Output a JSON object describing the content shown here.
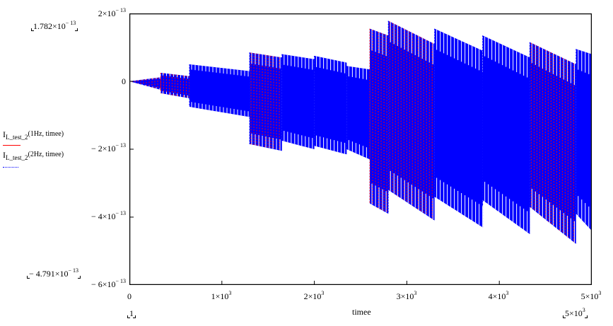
{
  "chart_data": {
    "type": "line",
    "title": "",
    "xlabel": "timee",
    "ylabel": "",
    "xlim": [
      0,
      5000
    ],
    "ylim": [
      -6e-13,
      2e-13
    ],
    "grid": false,
    "legend_position": "left",
    "x_ticks": [
      {
        "value": 0,
        "mant": "0",
        "exp": ""
      },
      {
        "value": 1000,
        "mant": "1×10",
        "exp": "3"
      },
      {
        "value": 2000,
        "mant": "2×10",
        "exp": "3"
      },
      {
        "value": 3000,
        "mant": "3×10",
        "exp": "3"
      },
      {
        "value": 4000,
        "mant": "4×10",
        "exp": "3"
      },
      {
        "value": 5000,
        "mant": "5×10",
        "exp": "3"
      }
    ],
    "y_ticks": [
      {
        "value": 2e-13,
        "mant": "2×10",
        "exp": "− 13"
      },
      {
        "value": 0,
        "mant": "0",
        "exp": ""
      },
      {
        "value": -2e-13,
        "mant": "− 2×10",
        "exp": "− 13"
      },
      {
        "value": -4e-13,
        "mant": "− 4×10",
        "exp": "− 13"
      },
      {
        "value": -6e-13,
        "mant": "− 6×10",
        "exp": "− 13"
      }
    ],
    "series": [
      {
        "name": "I_L_test_2(1Hz, timee)",
        "color": "#ff0000",
        "style": "solid"
      },
      {
        "name": "I_L_test_2(2Hz, timee)",
        "color": "#0000ff",
        "style": "dotted"
      }
    ],
    "envelope_segments": [
      {
        "t_start": 0,
        "t_end": 340,
        "top_start": 0.0,
        "top_end": 1.2e-14,
        "bot_start": 0.0,
        "bot_end": -2.5e-14
      },
      {
        "t_start": 340,
        "t_end": 650,
        "top_start": 2.5e-14,
        "top_end": 1.5e-14,
        "bot_start": -3.5e-14,
        "bot_end": -5e-14
      },
      {
        "t_start": 650,
        "t_end": 1300,
        "top_start": 5e-14,
        "top_end": 3e-14,
        "bot_start": -7.5e-14,
        "bot_end": -1.05e-13
      },
      {
        "t_start": 1300,
        "t_end": 1650,
        "top_start": 8.5e-14,
        "top_end": 7e-14,
        "bot_start": -1.85e-13,
        "bot_end": -2.05e-13
      },
      {
        "t_start": 1650,
        "t_end": 2000,
        "top_start": 8e-14,
        "top_end": 6.5e-14,
        "bot_start": -1.75e-13,
        "bot_end": -2e-13
      },
      {
        "t_start": 2000,
        "t_end": 2350,
        "top_start": 7.5e-14,
        "top_end": 5.5e-14,
        "bot_start": -1.9e-13,
        "bot_end": -2.15e-13
      },
      {
        "t_start": 2350,
        "t_end": 2600,
        "top_start": 4.5e-14,
        "top_end": 3.5e-14,
        "bot_start": -2e-13,
        "bot_end": -2.3e-13
      },
      {
        "t_start": 2600,
        "t_end": 2800,
        "top_start": 1.55e-13,
        "top_end": 1.35e-13,
        "bot_start": -3.6e-13,
        "bot_end": -3.9e-13
      },
      {
        "t_start": 2800,
        "t_end": 3300,
        "top_start": 1.78e-13,
        "top_end": 1.1e-13,
        "bot_start": -3.2e-13,
        "bot_end": -4.1e-13
      },
      {
        "t_start": 3300,
        "t_end": 3820,
        "top_start": 1.55e-13,
        "top_end": 9e-14,
        "bot_start": -3.4e-13,
        "bot_end": -4.3e-13
      },
      {
        "t_start": 3820,
        "t_end": 4330,
        "top_start": 1.35e-13,
        "top_end": 7e-14,
        "bot_start": -3.5e-13,
        "bot_end": -4.5e-13
      },
      {
        "t_start": 4330,
        "t_end": 4830,
        "top_start": 1.15e-13,
        "top_end": 5e-14,
        "bot_start": -3.7e-13,
        "bot_end": -4.79e-13
      },
      {
        "t_start": 4830,
        "t_end": 5000,
        "top_start": 9.5e-14,
        "top_end": 8e-14,
        "bot_start": -3.9e-13,
        "bot_end": -4.4e-13
      }
    ],
    "markers": {
      "y_max": "1.782×10",
      "y_max_exp": "− 13",
      "y_min": "− 4.791×10",
      "y_min_exp": "− 13",
      "x_min": "1",
      "x_max": "5×10",
      "x_max_exp": "3"
    }
  },
  "legend": {
    "entry1": {
      "base": "I",
      "sub": "L_test_2",
      "arg": "(1Hz, timee)"
    },
    "entry2": {
      "base": "I",
      "sub": "L_test_2",
      "arg": "(2Hz, timee)"
    }
  },
  "axis": {
    "xlabel": "timee"
  }
}
